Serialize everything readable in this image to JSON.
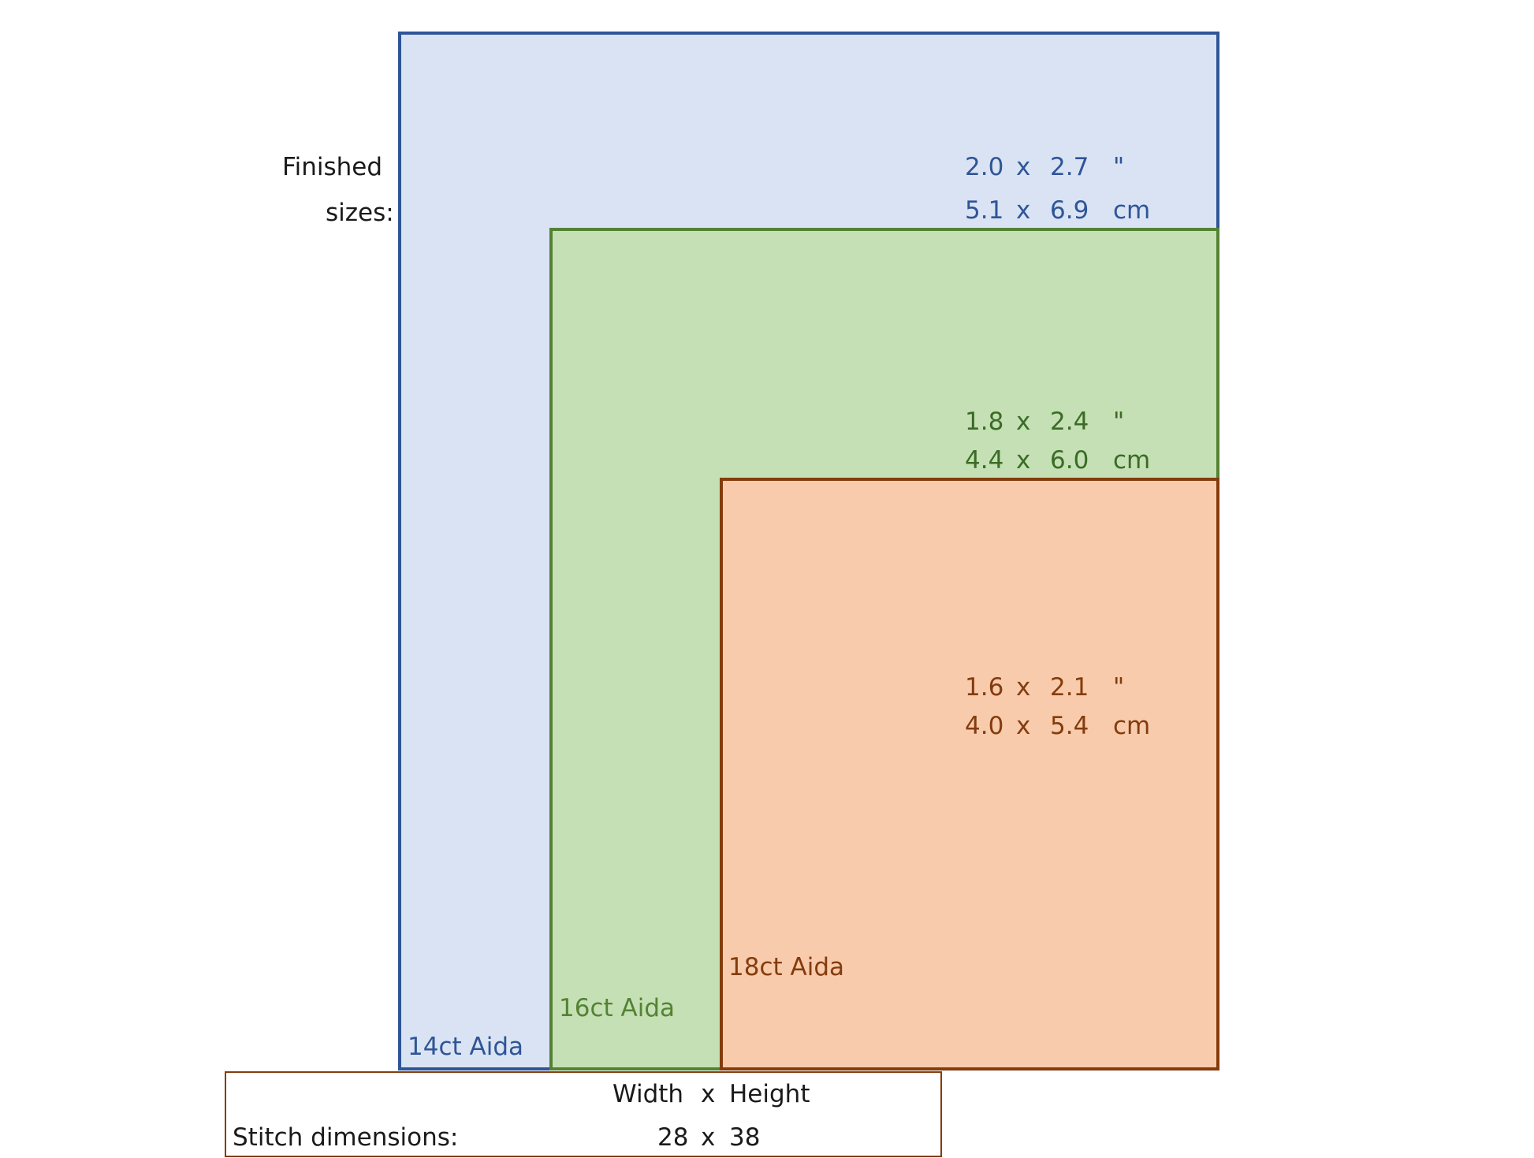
{
  "labels": {
    "finished_line1": "Finished",
    "finished_line2": "sizes:",
    "aida14": "14ct Aida",
    "aida16": "16ct Aida",
    "aida18": "18ct Aida"
  },
  "sizes": {
    "aida14": {
      "inch": {
        "w": "2.0",
        "x": "x",
        "h": "2.7",
        "unit": "\""
      },
      "cm": {
        "w": "5.1",
        "x": "x",
        "h": "6.9",
        "unit": "cm"
      }
    },
    "aida16": {
      "inch": {
        "w": "1.8",
        "x": "x",
        "h": "2.4",
        "unit": "\""
      },
      "cm": {
        "w": "4.4",
        "x": "x",
        "h": "6.0",
        "unit": "cm"
      }
    },
    "aida18": {
      "inch": {
        "w": "1.6",
        "x": "x",
        "h": "2.1",
        "unit": "\""
      },
      "cm": {
        "w": "4.0",
        "x": "x",
        "h": "5.4",
        "unit": "cm"
      }
    }
  },
  "stitch": {
    "header_width": "Width",
    "header_x": "x",
    "header_height": "Height",
    "label": "Stitch dimensions:",
    "width": "28",
    "x": "x",
    "height": "38"
  },
  "colors": {
    "aida14_fill": "#dae3f3",
    "aida14_border": "#2f5597",
    "aida16_fill": "#c5e0b4",
    "aida16_border": "#548235",
    "aida18_fill": "#f8cbad",
    "aida18_border": "#843c0c"
  }
}
